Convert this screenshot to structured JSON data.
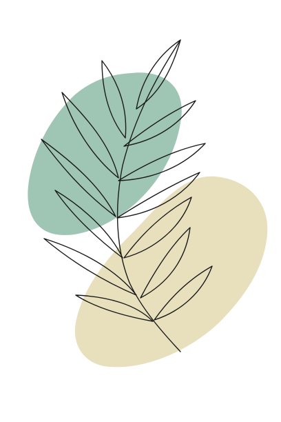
{
  "artwork": {
    "background_color": "#ffffff",
    "blob_green_color": "#9fc5b4",
    "blob_sand_color": "#e8e0bd",
    "line_color": "#1a1a1a"
  }
}
